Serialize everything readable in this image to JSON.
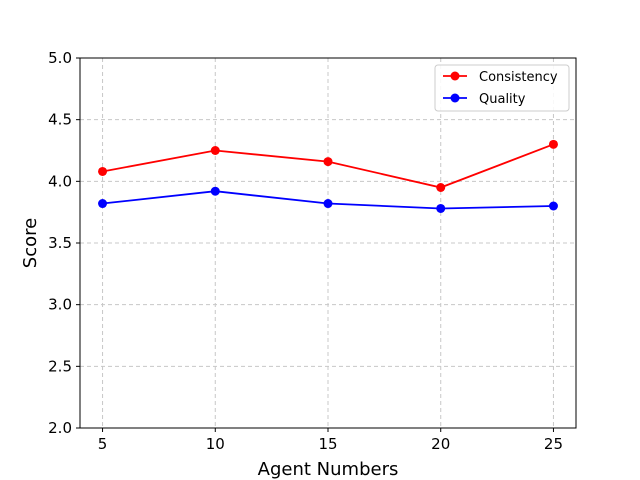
{
  "chart_data": {
    "type": "line",
    "title": "",
    "xlabel": "Agent Numbers",
    "ylabel": "Score",
    "x": [
      5,
      10,
      15,
      20,
      25
    ],
    "xlim": [
      4,
      26
    ],
    "ylim": [
      2.0,
      5.0
    ],
    "xticks": [
      "5",
      "10",
      "15",
      "20",
      "25"
    ],
    "yticks": [
      "2.0",
      "2.5",
      "3.0",
      "3.5",
      "4.0",
      "4.5",
      "5.0"
    ],
    "grid": true,
    "legend_position": "top-right",
    "series": [
      {
        "name": "Consistency",
        "color": "#ff0000",
        "values": [
          4.08,
          4.25,
          4.16,
          3.95,
          4.3
        ]
      },
      {
        "name": "Quality",
        "color": "#0000ff",
        "values": [
          3.82,
          3.92,
          3.82,
          3.78,
          3.8
        ]
      }
    ]
  }
}
